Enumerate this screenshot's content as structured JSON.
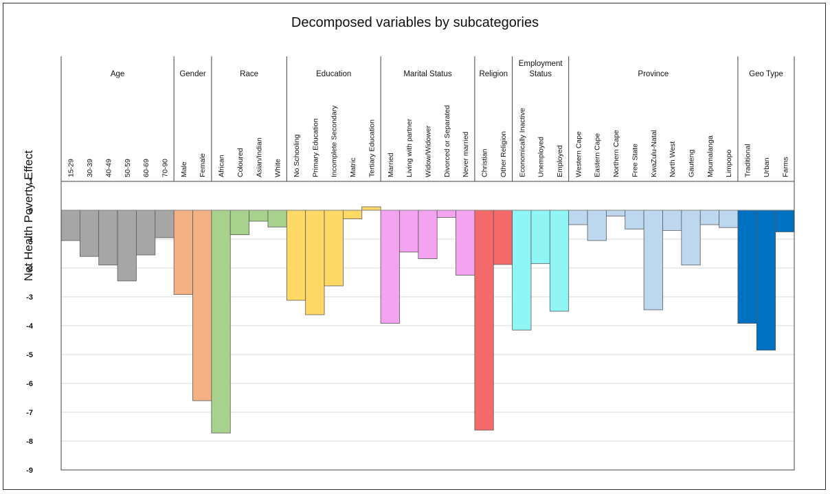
{
  "chart_data": {
    "type": "bar",
    "title": "Decomposed variables by subcategories",
    "ylabel": "Net Health Poverty  Effect",
    "xlabel": "",
    "ylim": [
      -9,
      1
    ],
    "yticks": [
      1,
      0,
      -1,
      -2,
      -3,
      -4,
      -5,
      -6,
      -7,
      -8,
      -9
    ],
    "grid": true,
    "groups": [
      {
        "name": "Age",
        "color": "#a6a6a6",
        "categories": [
          "15-29",
          "30-39",
          "40-49",
          "50-59",
          "60-69",
          "70-90"
        ],
        "values": [
          -1.05,
          -1.6,
          -1.9,
          -2.45,
          -1.55,
          -0.95
        ]
      },
      {
        "name": "Gender",
        "color": "#f4b183",
        "categories": [
          "Male",
          "Female"
        ],
        "values": [
          -2.92,
          -6.6
        ]
      },
      {
        "name": "Race",
        "color": "#a9d18e",
        "categories": [
          "African",
          "Coloured",
          "Asian/Indian",
          "White"
        ],
        "values": [
          -7.72,
          -0.85,
          -0.38,
          -0.58
        ]
      },
      {
        "name": "Education",
        "color": "#ffd966",
        "categories": [
          "No Schooling",
          "Primary Education",
          "Incomplete Secondary",
          "Matric",
          "Tertiary Education"
        ],
        "values": [
          -3.12,
          -3.62,
          -2.62,
          -0.3,
          0.12
        ]
      },
      {
        "name": "Marital Status",
        "color": "#f4a3f0",
        "categories": [
          "Married",
          "Living with partner",
          "Widow/Widower",
          "Divorced or Separated",
          "Never married"
        ],
        "values": [
          -3.92,
          -1.45,
          -1.68,
          -0.25,
          -2.25
        ]
      },
      {
        "name": "Religion",
        "color": "#f46a6a",
        "categories": [
          "Christian",
          "Other Religion"
        ],
        "values": [
          -7.62,
          -1.88
        ]
      },
      {
        "name": "Employment Status",
        "color": "#8ff5f5",
        "categories": [
          "Economically Inactive",
          "Unemployed",
          "Employed"
        ],
        "values": [
          -4.15,
          -1.85,
          -3.5
        ]
      },
      {
        "name": "Province",
        "color": "#bdd7ee",
        "categories": [
          "Western Cape",
          "Eastern Cape",
          "Northern Cape",
          "Free State",
          "KwaZulu-Natal",
          "North West",
          "Gauteng",
          "Mpumalanga",
          "Limpopo"
        ],
        "values": [
          -0.5,
          -1.05,
          -0.2,
          -0.65,
          -3.45,
          -0.7,
          -1.9,
          -0.5,
          -0.6
        ]
      },
      {
        "name": "Geo Type",
        "color": "#0070c0",
        "categories": [
          "Traditional",
          "Urban",
          "Farms"
        ],
        "values": [
          -3.92,
          -4.85,
          -0.75
        ]
      }
    ]
  }
}
